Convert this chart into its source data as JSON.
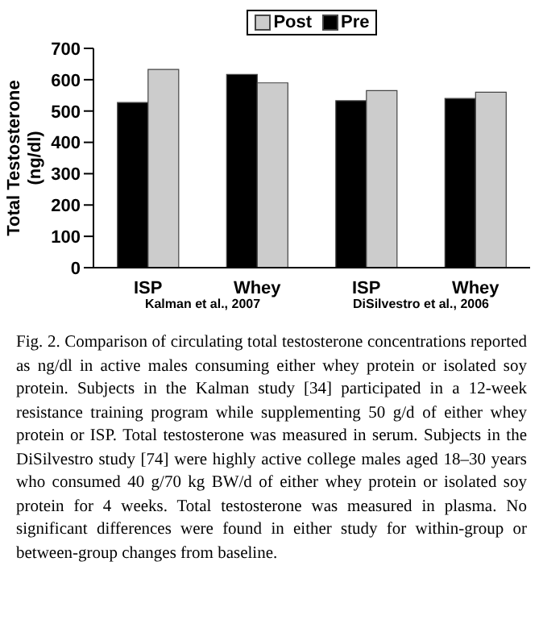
{
  "chart_data": {
    "type": "bar",
    "ylabel": "Total Testosterone (ng/dl)",
    "categories": [
      "ISP",
      "Whey",
      "ISP",
      "Whey"
    ],
    "series": [
      {
        "name": "Pre",
        "color": "#000000",
        "values": [
          527,
          617,
          533,
          540
        ]
      },
      {
        "name": "Post",
        "color": "#cccccc",
        "values": [
          633,
          590,
          565,
          560
        ]
      }
    ],
    "ylim": [
      0,
      700
    ],
    "yticks": [
      0,
      100,
      200,
      300,
      400,
      500,
      600,
      700
    ],
    "grid": false,
    "legend": "top",
    "annotations": [
      "Kalman et al., 2007",
      "DiSilvestro et al., 2006",
      "Fig. 2. Comparison of circulating total testosterone concentrations reported as ng/dl in active males consuming either whey protein or isolated soy protein. Subjects in the Kalman study [34] participated in a 12-week resistance training program while supplementing 50 g/d of either whey protein or ISP. Total testosterone was measured in serum. Subjects in the DiSilvestro study [74] were highly active college males aged 18–30 years who consumed 40 g/70 kg BW/d of either whey protein or isolated soy protein for 4 weeks. Total testosterone was measured in plasma. No significant differences were found in either study for within-group or between-group changes from baseline."
    ]
  }
}
